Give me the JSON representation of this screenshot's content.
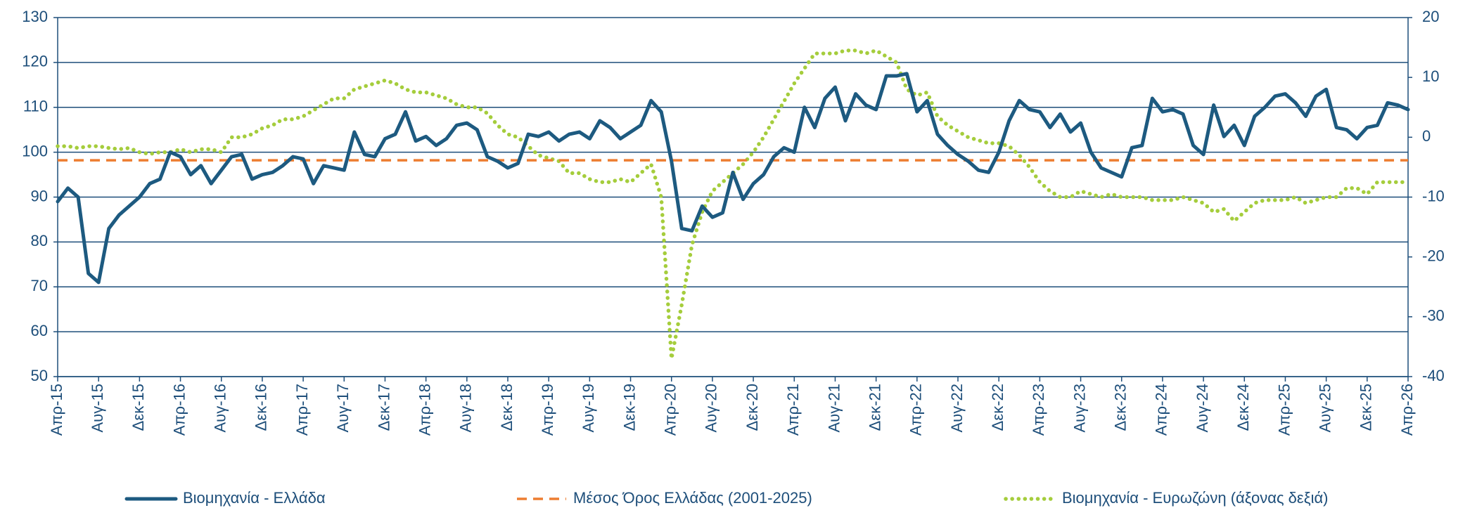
{
  "chart_data": {
    "type": "line",
    "categories": [
      "Απρ-15",
      null,
      null,
      null,
      "Αυγ-15",
      null,
      null,
      null,
      "Δεκ-15",
      null,
      null,
      null,
      "Απρ-16",
      null,
      null,
      null,
      "Αυγ-16",
      null,
      null,
      null,
      "Δεκ-16",
      null,
      null,
      null,
      "Απρ-17",
      null,
      null,
      null,
      "Αυγ-17",
      null,
      null,
      null,
      "Δεκ-17",
      null,
      null,
      null,
      "Απρ-18",
      null,
      null,
      null,
      "Αυγ-18",
      null,
      null,
      null,
      "Δεκ-18",
      null,
      null,
      null,
      "Απρ-19",
      null,
      null,
      null,
      "Αυγ-19",
      null,
      null,
      null,
      "Δεκ-19",
      null,
      null,
      null,
      "Απρ-20",
      null,
      null,
      null,
      "Αυγ-20",
      null,
      null,
      null,
      "Δεκ-20",
      null,
      null,
      null,
      "Απρ-21",
      null,
      null,
      null,
      "Αυγ-21",
      null,
      null,
      null,
      "Δεκ-21",
      null,
      null,
      null,
      "Απρ-22",
      null,
      null,
      null,
      "Αυγ-22",
      null,
      null,
      null,
      "Δεκ-22",
      null,
      null,
      null,
      "Απρ-23",
      null,
      null,
      null,
      "Αυγ-23",
      null,
      null,
      null,
      "Δεκ-23",
      null,
      null,
      null,
      "Απρ-24",
      null,
      null,
      null,
      "Αυγ-24",
      null,
      null,
      null,
      "Δεκ-24",
      null,
      null,
      null,
      "Απρ-25",
      null,
      null,
      null,
      "Αυγ-25",
      null,
      null,
      null,
      "Δεκ-25",
      null,
      null,
      null,
      "Απρ-26"
    ],
    "series": [
      {
        "name": "Βιομηχανία  - Ελλάδα",
        "color": "#1d5a80",
        "style": "solid",
        "axis": "y",
        "values": [
          89,
          92,
          90,
          73,
          71,
          83,
          86,
          88,
          90,
          93,
          94,
          100,
          99,
          95,
          97,
          93,
          96,
          99,
          99.5,
          94,
          95,
          95.5,
          97,
          99,
          98.5,
          93,
          97,
          96.5,
          96,
          104.5,
          99.5,
          99,
          103,
          104,
          109,
          102.5,
          103.5,
          101.5,
          103,
          106,
          106.5,
          105,
          99,
          98,
          96.5,
          97.5,
          104,
          103.5,
          104.5,
          102.5,
          104,
          104.5,
          103,
          107,
          105.5,
          103,
          104.5,
          106,
          111.5,
          109,
          98,
          83,
          82.5,
          88,
          85.5,
          86.5,
          95.5,
          89.5,
          93,
          95,
          99,
          101,
          100,
          110,
          105.5,
          112,
          114.5,
          107,
          113,
          110.5,
          109.5,
          117,
          117,
          117.5,
          109,
          111.5,
          104,
          101.5,
          99.5,
          98,
          96,
          95.5,
          100,
          107,
          111.5,
          109.5,
          109,
          105.5,
          108.5,
          104.5,
          106.5,
          100,
          96.5,
          95.5,
          94.5,
          101,
          101.5,
          112,
          109,
          109.5,
          108.5,
          101.5,
          99.5,
          110.5,
          103.5,
          106,
          101.5,
          108,
          110,
          112.5,
          113,
          111,
          108,
          112.5,
          114,
          105.5,
          105,
          103,
          105.5,
          106,
          111,
          110.5,
          109.5
        ]
      },
      {
        "name": "Μέσος Όρος Ελλάδας (2001-2025)",
        "color": "#ed7d31",
        "style": "dashed",
        "axis": "y",
        "values": [
          98.2,
          98.2,
          98.2,
          98.2,
          98.2,
          98.2,
          98.2,
          98.2,
          98.2,
          98.2,
          98.2,
          98.2,
          98.2,
          98.2,
          98.2,
          98.2,
          98.2,
          98.2,
          98.2,
          98.2,
          98.2,
          98.2,
          98.2,
          98.2,
          98.2,
          98.2,
          98.2,
          98.2,
          98.2,
          98.2,
          98.2,
          98.2,
          98.2,
          98.2,
          98.2,
          98.2,
          98.2,
          98.2,
          98.2,
          98.2,
          98.2,
          98.2,
          98.2,
          98.2,
          98.2,
          98.2,
          98.2,
          98.2,
          98.2,
          98.2,
          98.2,
          98.2,
          98.2,
          98.2,
          98.2,
          98.2,
          98.2,
          98.2,
          98.2,
          98.2,
          98.2,
          98.2,
          98.2,
          98.2,
          98.2,
          98.2,
          98.2,
          98.2,
          98.2,
          98.2,
          98.2,
          98.2,
          98.2,
          98.2,
          98.2,
          98.2,
          98.2,
          98.2,
          98.2,
          98.2,
          98.2,
          98.2,
          98.2,
          98.2,
          98.2,
          98.2,
          98.2,
          98.2,
          98.2,
          98.2,
          98.2,
          98.2,
          98.2,
          98.2,
          98.2,
          98.2,
          98.2,
          98.2,
          98.2,
          98.2,
          98.2,
          98.2,
          98.2,
          98.2,
          98.2,
          98.2,
          98.2,
          98.2,
          98.2,
          98.2,
          98.2,
          98.2,
          98.2,
          98.2,
          98.2,
          98.2,
          98.2,
          98.2,
          98.2,
          98.2,
          98.2,
          98.2,
          98.2,
          98.2,
          98.2,
          98.2,
          98.2,
          98.2,
          98.2,
          98.2,
          98.2,
          98.2,
          98.2
        ]
      },
      {
        "name": "Βιομηχανία - Ευρωζώνη (άξονας δεξιά)",
        "color": "#a5cd3c",
        "style": "dotted",
        "axis": "y2",
        "values": [
          -1.5,
          -1.5,
          -1.8,
          -1.5,
          -1.5,
          -1.8,
          -2,
          -1.8,
          -2.5,
          -2.8,
          -2.5,
          -2.5,
          -2,
          -2.5,
          -2,
          -2,
          -2.5,
          0,
          0,
          0.5,
          1.5,
          2,
          3,
          3,
          3.5,
          4.5,
          5.5,
          6.5,
          6.5,
          8,
          8.5,
          9,
          9.5,
          9,
          8,
          7.5,
          7.5,
          7,
          6.5,
          5.5,
          5,
          5,
          4,
          2,
          0.5,
          0,
          -1.5,
          -3,
          -3.5,
          -4,
          -6,
          -6,
          -7,
          -7.5,
          -7.5,
          -7,
          -7.5,
          -6,
          -4.5,
          -10,
          -37,
          -28,
          -18,
          -12.5,
          -9,
          -7.5,
          -6,
          -4.5,
          -2.5,
          0,
          3,
          6,
          9,
          11.5,
          14,
          14,
          14,
          14.5,
          14.5,
          14,
          14.5,
          13.5,
          12.5,
          8,
          7,
          7.5,
          3.5,
          2,
          1,
          0,
          -0.5,
          -1,
          -1,
          -1.5,
          -3,
          -5,
          -7.5,
          -9,
          -10,
          -10,
          -9,
          -9.5,
          -10,
          -9.5,
          -10,
          -10,
          -10,
          -10.5,
          -10.5,
          -10.5,
          -10,
          -10.5,
          -11,
          -12.5,
          -12,
          -14,
          -12.5,
          -11,
          -10.5,
          -10.5,
          -10.5,
          -10,
          -11,
          -10.5,
          -10,
          -10,
          -8.5,
          -8.5,
          -9.5,
          -7.5,
          -7.5,
          -7.5,
          -7.5
        ]
      }
    ],
    "ylim": [
      50,
      130
    ],
    "yticks": [
      50,
      60,
      70,
      80,
      90,
      100,
      110,
      120,
      130
    ],
    "y2lim": [
      -40,
      20
    ],
    "y2ticks": [
      -40,
      -30,
      -20,
      -10,
      0,
      10,
      20
    ],
    "grid": true,
    "legend": "bottom"
  }
}
